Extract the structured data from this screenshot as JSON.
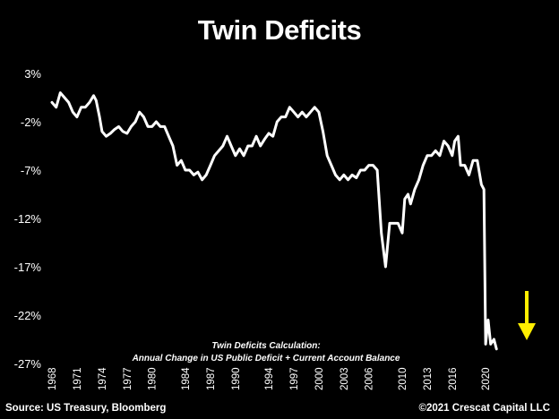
{
  "chart_data": {
    "type": "line",
    "title": "Twin Deficits",
    "annotation_title": "Twin Deficits Calculation:",
    "annotation_subtitle": "Annual Change in US Public Deficit + Current Account Balance",
    "source": "Source: US Treasury, Bloomberg",
    "copyright": "©2021 Crescat Capital LLC",
    "ylim": [
      -27,
      3
    ],
    "yticks": [
      "3%",
      "-2%",
      "-7%",
      "-12%",
      "-17%",
      "-22%",
      "-27%"
    ],
    "ytick_values": [
      3,
      -2,
      -7,
      -12,
      -17,
      -22,
      -27
    ],
    "xlim": [
      1968,
      2023
    ],
    "xticks": [
      "1968",
      "1971",
      "1974",
      "1977",
      "1980",
      "1984",
      "1987",
      "1990",
      "1994",
      "1997",
      "2000",
      "2003",
      "2006",
      "2010",
      "2013",
      "2016",
      "2020"
    ],
    "xtick_values": [
      1968,
      1971,
      1974,
      1977,
      1980,
      1984,
      1987,
      1990,
      1994,
      1997,
      2000,
      2003,
      2006,
      2010,
      2013,
      2016,
      2020
    ],
    "grid": false,
    "line_color": "#ffffff",
    "arrow_color": "#ffee00",
    "series": [
      {
        "name": "",
        "x": [
          1968.0,
          1968.5,
          1969.0,
          1969.5,
          1970.0,
          1970.5,
          1971.0,
          1971.5,
          1972.0,
          1972.5,
          1973.0,
          1973.3,
          1973.7,
          1974.0,
          1974.5,
          1975.0,
          1975.5,
          1976.0,
          1976.5,
          1977.0,
          1977.5,
          1978.0,
          1978.5,
          1979.0,
          1979.5,
          1980.0,
          1980.5,
          1981.0,
          1981.5,
          1982.0,
          1982.5,
          1983.0,
          1983.5,
          1984.0,
          1984.5,
          1985.0,
          1985.5,
          1986.0,
          1986.5,
          1987.0,
          1987.5,
          1988.0,
          1988.5,
          1989.0,
          1989.5,
          1990.0,
          1990.5,
          1991.0,
          1991.5,
          1992.0,
          1992.5,
          1993.0,
          1993.5,
          1994.0,
          1994.5,
          1995.0,
          1995.5,
          1996.0,
          1996.5,
          1997.0,
          1997.5,
          1998.0,
          1998.5,
          1999.0,
          1999.5,
          2000.0,
          2000.5,
          2001.0,
          2001.5,
          2002.0,
          2002.5,
          2003.0,
          2003.5,
          2004.0,
          2004.5,
          2005.0,
          2005.5,
          2006.0,
          2006.5,
          2007.0,
          2007.5,
          2008.0,
          2008.5,
          2009.0,
          2009.5,
          2010.0,
          2010.3,
          2010.7,
          2011.0,
          2011.5,
          2012.0,
          2012.5,
          2013.0,
          2013.5,
          2014.0,
          2014.5,
          2015.0,
          2015.5,
          2016.0,
          2016.3,
          2016.7,
          2017.0,
          2017.5,
          2018.0,
          2018.5,
          2019.0,
          2019.5,
          2019.8,
          2020.0,
          2020.3,
          2020.6,
          2021.0,
          2021.3
        ],
        "y": [
          0.0,
          -0.5,
          1.0,
          0.5,
          0.0,
          -1.0,
          -1.5,
          -0.5,
          -0.5,
          0.0,
          0.7,
          0.2,
          -1.5,
          -3.0,
          -3.5,
          -3.2,
          -2.8,
          -2.5,
          -3.0,
          -3.2,
          -2.5,
          -2.0,
          -1.0,
          -1.5,
          -2.5,
          -2.5,
          -2.0,
          -2.5,
          -2.5,
          -3.5,
          -4.5,
          -6.5,
          -6.0,
          -7.0,
          -7.0,
          -7.5,
          -7.2,
          -8.0,
          -7.5,
          -6.5,
          -5.5,
          -5.0,
          -4.5,
          -3.5,
          -4.5,
          -5.5,
          -4.8,
          -5.5,
          -4.5,
          -4.5,
          -3.5,
          -4.5,
          -3.8,
          -3.2,
          -3.5,
          -2.0,
          -1.5,
          -1.5,
          -0.5,
          -1.0,
          -1.5,
          -1.0,
          -1.5,
          -1.0,
          -0.5,
          -1.0,
          -3.0,
          -5.5,
          -6.5,
          -7.5,
          -8.0,
          -7.5,
          -8.0,
          -7.5,
          -7.8,
          -7.0,
          -7.0,
          -6.5,
          -6.5,
          -7.0,
          -13.5,
          -17.0,
          -12.5,
          -12.5,
          -12.5,
          -13.5,
          -10.0,
          -9.5,
          -10.5,
          -9.0,
          -8.0,
          -6.5,
          -5.5,
          -5.5,
          -5.0,
          -5.5,
          -4.0,
          -4.5,
          -5.5,
          -4.0,
          -3.5,
          -6.5,
          -6.5,
          -7.5,
          -6.0,
          -6.0,
          -8.5,
          -9.0,
          -25.0,
          -22.5,
          -25.0,
          -24.5,
          -25.5
        ]
      }
    ]
  }
}
